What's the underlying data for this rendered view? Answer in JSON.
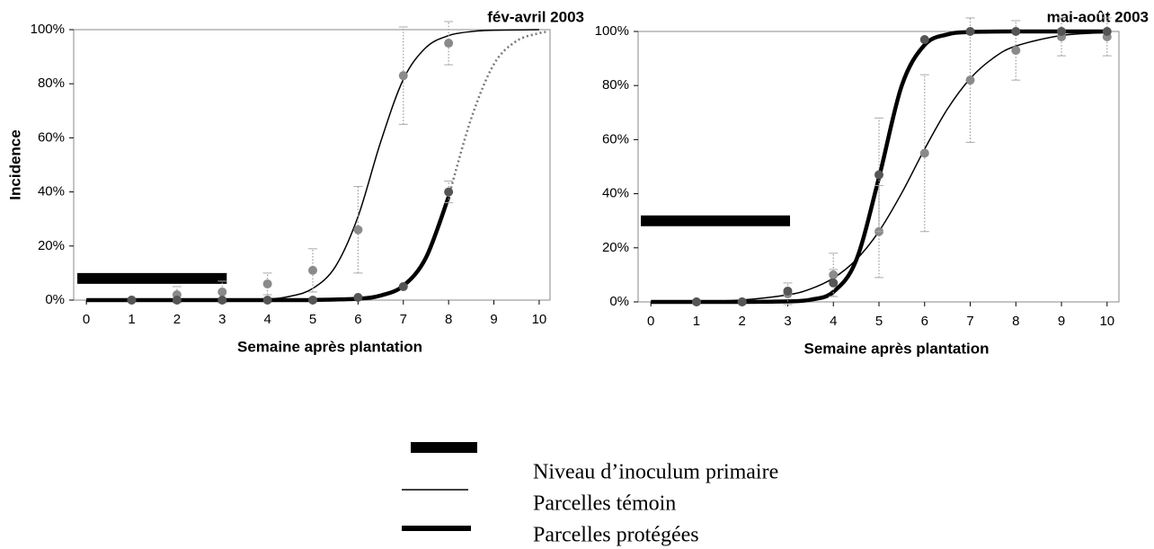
{
  "chart_data": [
    {
      "type": "line",
      "title": "fév-avril 2003",
      "x_label": "Semaine après plantation",
      "y_label": "Incidence",
      "xlim": [
        -0.28,
        10.24
      ],
      "ylim": [
        0,
        100
      ],
      "xticks": [
        0,
        1,
        2,
        3,
        4,
        5,
        6,
        7,
        8,
        9,
        10
      ],
      "yticks": [
        {
          "value": 0,
          "label": "0%"
        },
        {
          "value": 20,
          "label": "20%"
        },
        {
          "value": 40,
          "label": "40%"
        },
        {
          "value": 60,
          "label": "60%"
        },
        {
          "value": 80,
          "label": "80%"
        },
        {
          "value": 100,
          "label": "100%"
        }
      ],
      "inoculum": {
        "x": [
          -0.2,
          3.1
        ],
        "value": 8,
        "color": "#000000"
      },
      "series": [
        {
          "style": "thin",
          "color": "#000000",
          "x": [
            0,
            1,
            2,
            3,
            4,
            4.5,
            5,
            5.5,
            6,
            6.5,
            7,
            7.5,
            8,
            8.5,
            9,
            10
          ],
          "values": [
            0,
            0,
            0,
            0.05,
            0.45,
            1.4,
            4.3,
            12.4,
            30.9,
            58.5,
            81.6,
            93.4,
            97.8,
            99.3,
            99.8,
            100
          ]
        },
        {
          "style": "thick",
          "color": "#000000",
          "x": [
            0,
            1,
            2,
            3,
            4,
            5,
            6,
            6.5,
            7,
            7.5,
            8
          ],
          "values": [
            0,
            0,
            0,
            0,
            0,
            0.05,
            0.5,
            1.7,
            5.3,
            15.7,
            38.2
          ]
        },
        {
          "style": "dotted",
          "color": "#777777",
          "x": [
            8,
            8.5,
            9,
            9.5,
            10,
            10.2
          ],
          "values": [
            38.2,
            67.2,
            87.2,
            95.8,
            98.7,
            99.2
          ]
        }
      ],
      "observations": [
        {
          "color": "#8a8a8a",
          "x": [
            1,
            2,
            3,
            4,
            5,
            6,
            7,
            8
          ],
          "values": [
            0,
            2,
            3,
            6,
            11,
            26,
            83,
            95
          ],
          "errors": [
            null,
            3,
            4,
            4,
            8,
            16,
            18,
            8
          ]
        },
        {
          "color": "#555555",
          "x": [
            1,
            2,
            3,
            4,
            5,
            6,
            7,
            8
          ],
          "values": [
            0,
            0,
            0,
            0,
            0,
            1,
            5,
            40
          ],
          "errors": [
            null,
            null,
            null,
            null,
            null,
            null,
            null,
            4
          ]
        }
      ]
    },
    {
      "type": "line",
      "title": "mai-août 2003",
      "x_label": "Semaine après plantation",
      "xlim": [
        -0.28,
        10.26
      ],
      "ylim": [
        0,
        100
      ],
      "xticks": [
        0,
        1,
        2,
        3,
        4,
        5,
        6,
        7,
        8,
        9,
        10
      ],
      "yticks": [
        {
          "value": 0,
          "label": "0%"
        },
        {
          "value": 20,
          "label": "20%"
        },
        {
          "value": 40,
          "label": "40%"
        },
        {
          "value": 60,
          "label": "60%"
        },
        {
          "value": 80,
          "label": "80%"
        },
        {
          "value": 100,
          "label": "100%"
        }
      ],
      "inoculum": {
        "x": [
          -0.22,
          3.05
        ],
        "value": 30,
        "color": "#000000"
      },
      "series": [
        {
          "style": "thin",
          "color": "#000000",
          "x": [
            0,
            1,
            2,
            3,
            3.5,
            4,
            4.5,
            5,
            5.5,
            6,
            6.5,
            7,
            7.5,
            8,
            9,
            10
          ],
          "values": [
            0.05,
            0.2,
            0.7,
            2.6,
            4.8,
            8.8,
            15.6,
            26.1,
            40.3,
            56.5,
            71.3,
            82.6,
            90.1,
            94.6,
            98.5,
            99.6
          ]
        },
        {
          "style": "thick",
          "color": "#000000",
          "x": [
            0,
            1,
            2,
            3,
            3.5,
            4,
            4.5,
            5,
            5.5,
            6,
            6.5,
            7,
            8,
            9,
            10
          ],
          "values": [
            0,
            0,
            0,
            0.2,
            0.8,
            3.7,
            15.4,
            46,
            80,
            95,
            98.9,
            99.8,
            100,
            100,
            100
          ]
        }
      ],
      "observations": [
        {
          "color": "#8a8a8a",
          "x": [
            1,
            2,
            3,
            4,
            5,
            6,
            7,
            8,
            9,
            10
          ],
          "values": [
            0,
            0,
            3,
            10,
            26,
            55,
            82,
            93,
            98,
            98
          ],
          "errors": [
            null,
            null,
            4,
            8,
            17,
            29,
            23,
            11,
            7,
            7
          ]
        },
        {
          "color": "#555555",
          "x": [
            1,
            2,
            3,
            4,
            5,
            6,
            7,
            8,
            9,
            10
          ],
          "values": [
            0,
            0,
            4,
            7,
            47,
            97,
            100,
            100,
            100,
            100
          ],
          "errors": [
            null,
            null,
            null,
            5,
            21,
            null,
            null,
            null,
            null,
            null
          ]
        }
      ]
    }
  ],
  "legend": [
    {
      "label": "Niveau d’inoculum primaire",
      "style": "bar"
    },
    {
      "label": "Parcelles témoin",
      "style": "thin"
    },
    {
      "label": "Parcelles protégées",
      "style": "thick"
    }
  ]
}
